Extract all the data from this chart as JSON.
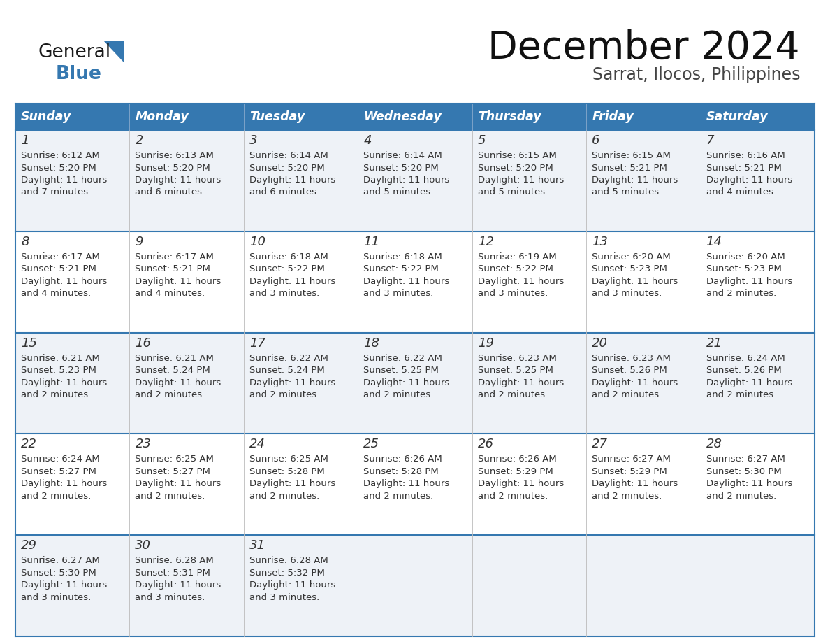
{
  "title": "December 2024",
  "subtitle": "Sarrat, Ilocos, Philippines",
  "days_of_week": [
    "Sunday",
    "Monday",
    "Tuesday",
    "Wednesday",
    "Thursday",
    "Friday",
    "Saturday"
  ],
  "header_bg": "#3578b0",
  "header_text": "#ffffff",
  "row_bg_odd": "#eef2f7",
  "row_bg_even": "#ffffff",
  "separator_color": "#3578b0",
  "cell_text_color": "#333333",
  "calendar_data": [
    [
      {
        "day": 1,
        "sunrise": "6:12 AM",
        "sunset": "5:20 PM",
        "daylight": "11 hours and 7 minutes."
      },
      {
        "day": 2,
        "sunrise": "6:13 AM",
        "sunset": "5:20 PM",
        "daylight": "11 hours and 6 minutes."
      },
      {
        "day": 3,
        "sunrise": "6:14 AM",
        "sunset": "5:20 PM",
        "daylight": "11 hours and 6 minutes."
      },
      {
        "day": 4,
        "sunrise": "6:14 AM",
        "sunset": "5:20 PM",
        "daylight": "11 hours and 5 minutes."
      },
      {
        "day": 5,
        "sunrise": "6:15 AM",
        "sunset": "5:20 PM",
        "daylight": "11 hours and 5 minutes."
      },
      {
        "day": 6,
        "sunrise": "6:15 AM",
        "sunset": "5:21 PM",
        "daylight": "11 hours and 5 minutes."
      },
      {
        "day": 7,
        "sunrise": "6:16 AM",
        "sunset": "5:21 PM",
        "daylight": "11 hours and 4 minutes."
      }
    ],
    [
      {
        "day": 8,
        "sunrise": "6:17 AM",
        "sunset": "5:21 PM",
        "daylight": "11 hours and 4 minutes."
      },
      {
        "day": 9,
        "sunrise": "6:17 AM",
        "sunset": "5:21 PM",
        "daylight": "11 hours and 4 minutes."
      },
      {
        "day": 10,
        "sunrise": "6:18 AM",
        "sunset": "5:22 PM",
        "daylight": "11 hours and 3 minutes."
      },
      {
        "day": 11,
        "sunrise": "6:18 AM",
        "sunset": "5:22 PM",
        "daylight": "11 hours and 3 minutes."
      },
      {
        "day": 12,
        "sunrise": "6:19 AM",
        "sunset": "5:22 PM",
        "daylight": "11 hours and 3 minutes."
      },
      {
        "day": 13,
        "sunrise": "6:20 AM",
        "sunset": "5:23 PM",
        "daylight": "11 hours and 3 minutes."
      },
      {
        "day": 14,
        "sunrise": "6:20 AM",
        "sunset": "5:23 PM",
        "daylight": "11 hours and 2 minutes."
      }
    ],
    [
      {
        "day": 15,
        "sunrise": "6:21 AM",
        "sunset": "5:23 PM",
        "daylight": "11 hours and 2 minutes."
      },
      {
        "day": 16,
        "sunrise": "6:21 AM",
        "sunset": "5:24 PM",
        "daylight": "11 hours and 2 minutes."
      },
      {
        "day": 17,
        "sunrise": "6:22 AM",
        "sunset": "5:24 PM",
        "daylight": "11 hours and 2 minutes."
      },
      {
        "day": 18,
        "sunrise": "6:22 AM",
        "sunset": "5:25 PM",
        "daylight": "11 hours and 2 minutes."
      },
      {
        "day": 19,
        "sunrise": "6:23 AM",
        "sunset": "5:25 PM",
        "daylight": "11 hours and 2 minutes."
      },
      {
        "day": 20,
        "sunrise": "6:23 AM",
        "sunset": "5:26 PM",
        "daylight": "11 hours and 2 minutes."
      },
      {
        "day": 21,
        "sunrise": "6:24 AM",
        "sunset": "5:26 PM",
        "daylight": "11 hours and 2 minutes."
      }
    ],
    [
      {
        "day": 22,
        "sunrise": "6:24 AM",
        "sunset": "5:27 PM",
        "daylight": "11 hours and 2 minutes."
      },
      {
        "day": 23,
        "sunrise": "6:25 AM",
        "sunset": "5:27 PM",
        "daylight": "11 hours and 2 minutes."
      },
      {
        "day": 24,
        "sunrise": "6:25 AM",
        "sunset": "5:28 PM",
        "daylight": "11 hours and 2 minutes."
      },
      {
        "day": 25,
        "sunrise": "6:26 AM",
        "sunset": "5:28 PM",
        "daylight": "11 hours and 2 minutes."
      },
      {
        "day": 26,
        "sunrise": "6:26 AM",
        "sunset": "5:29 PM",
        "daylight": "11 hours and 2 minutes."
      },
      {
        "day": 27,
        "sunrise": "6:27 AM",
        "sunset": "5:29 PM",
        "daylight": "11 hours and 2 minutes."
      },
      {
        "day": 28,
        "sunrise": "6:27 AM",
        "sunset": "5:30 PM",
        "daylight": "11 hours and 2 minutes."
      }
    ],
    [
      {
        "day": 29,
        "sunrise": "6:27 AM",
        "sunset": "5:30 PM",
        "daylight": "11 hours and 3 minutes."
      },
      {
        "day": 30,
        "sunrise": "6:28 AM",
        "sunset": "5:31 PM",
        "daylight": "11 hours and 3 minutes."
      },
      {
        "day": 31,
        "sunrise": "6:28 AM",
        "sunset": "5:32 PM",
        "daylight": "11 hours and 3 minutes."
      },
      null,
      null,
      null,
      null
    ]
  ],
  "logo_color_general": "#1a1a1a",
  "logo_color_blue": "#3578b0",
  "logo_triangle_color": "#3578b0"
}
